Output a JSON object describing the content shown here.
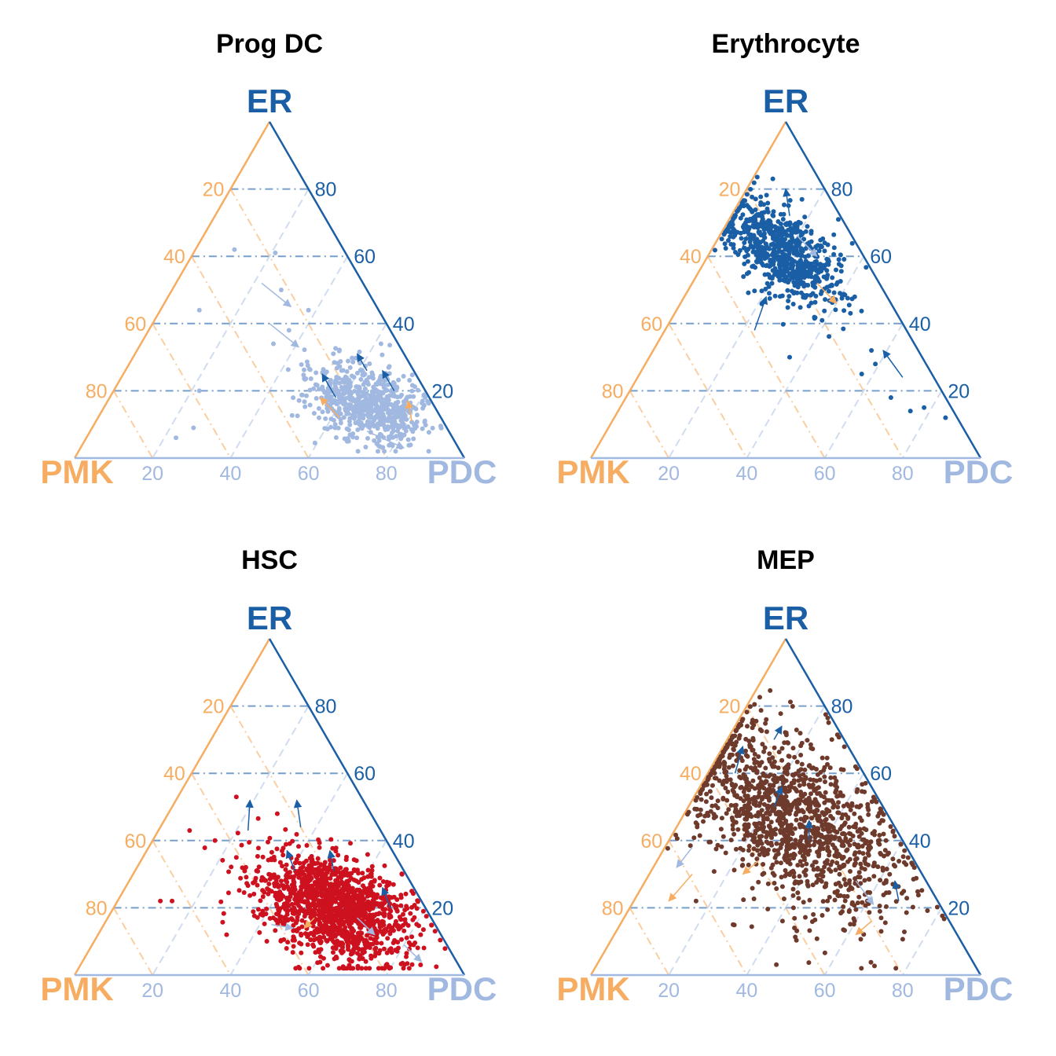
{
  "colors": {
    "ER": "#1a5fa6",
    "PMK": "#f6ad62",
    "PDC": "#a1b9e0",
    "Erythrocyte_points": "#1a5fa6",
    "Prog_DC_points": "#a1b9e0",
    "HSC_points": "#cd111f",
    "MEP_points": "#6e3a2c"
  },
  "chart_data": [
    {
      "type": "scatter",
      "subtype": "ternary",
      "title": "Prog DC",
      "point_color": "#a1b9e0",
      "axes": {
        "top": "ER",
        "left": "PMK",
        "right": "PDC"
      },
      "ticks": [
        20,
        40,
        60,
        80
      ],
      "grid": true,
      "cluster": {
        "ER": 16,
        "PMK": 17,
        "PDC": 67,
        "spread_er": 6,
        "spread_pmk": 7,
        "n": 650
      },
      "outliers": [
        {
          "ER": 62,
          "PMK": 28,
          "PDC": 10
        },
        {
          "ER": 61,
          "PMK": 18,
          "PDC": 21
        },
        {
          "ER": 44,
          "PMK": 46,
          "PDC": 10
        },
        {
          "ER": 20,
          "PMK": 58,
          "PDC": 22
        },
        {
          "ER": 9,
          "PMK": 65,
          "PDC": 26
        },
        {
          "ER": 6,
          "PMK": 71,
          "PDC": 23
        },
        {
          "ER": 50,
          "PMK": 22,
          "PDC": 28
        },
        {
          "ER": 38,
          "PMK": 26,
          "PDC": 36
        },
        {
          "ER": 44,
          "PMK": 18,
          "PDC": 38
        },
        {
          "ER": 34,
          "PMK": 32,
          "PDC": 34
        }
      ],
      "arrows": [
        {
          "from": [
            52,
            26,
            22
          ],
          "to": [
            45,
            22,
            33
          ],
          "color": "#a1b9e0"
        },
        {
          "from": [
            40,
            30,
            30
          ],
          "to": [
            33,
            26,
            41
          ],
          "color": "#a1b9e0"
        },
        {
          "from": [
            8,
            21,
            71
          ],
          "to": [
            3,
            14,
            83
          ],
          "color": "#a1b9e0"
        },
        {
          "from": [
            26,
            12,
            62
          ],
          "to": [
            31,
            12,
            57
          ],
          "color": "#1a5fa6"
        },
        {
          "from": [
            20,
            8,
            72
          ],
          "to": [
            26,
            8,
            66
          ],
          "color": "#1a5fa6"
        },
        {
          "from": [
            11,
            8,
            81
          ],
          "to": [
            17,
            6,
            77
          ],
          "color": "#f6ad62"
        },
        {
          "from": [
            18,
            24,
            58
          ],
          "to": [
            25,
            24,
            51
          ],
          "color": "#1a5fa6"
        },
        {
          "from": [
            12,
            26,
            62
          ],
          "to": [
            18,
            28,
            54
          ],
          "color": "#f6ad62"
        }
      ]
    },
    {
      "type": "scatter",
      "subtype": "ternary",
      "title": "Erythrocyte",
      "point_color": "#1a5fa6",
      "axes": {
        "top": "ER",
        "left": "PMK",
        "right": "PDC"
      },
      "ticks": [
        20,
        40,
        60,
        80
      ],
      "grid": true,
      "cluster": {
        "ER": 61,
        "PMK": 20,
        "PDC": 19,
        "spread_er": 8,
        "spread_pmk": 6,
        "n": 700
      },
      "outliers": [
        {
          "ER": 30,
          "PMK": 34,
          "PDC": 36
        },
        {
          "ER": 25,
          "PMK": 18,
          "PDC": 57
        },
        {
          "ER": 18,
          "PMK": 14,
          "PDC": 68
        },
        {
          "ER": 15,
          "PMK": 7,
          "PDC": 78
        },
        {
          "ER": 12,
          "PMK": 3,
          "PDC": 85
        },
        {
          "ER": 14,
          "PMK": 11,
          "PDC": 75
        },
        {
          "ER": 28,
          "PMK": 13,
          "PDC": 59
        },
        {
          "ER": 32,
          "PMK": 12,
          "PDC": 56
        }
      ],
      "arrows": [
        {
          "from": [
            60,
            32,
            8
          ],
          "to": [
            73,
            21,
            6
          ],
          "color": "#1a5fa6"
        },
        {
          "from": [
            72,
            13,
            15
          ],
          "to": [
            80,
            10,
            10
          ],
          "color": "#1a5fa6"
        },
        {
          "from": [
            66,
            14,
            20
          ],
          "to": [
            60,
            12,
            28
          ],
          "color": "#a1b9e0"
        },
        {
          "from": [
            38,
            39,
            23
          ],
          "to": [
            48,
            31,
            21
          ],
          "color": "#1a5fa6"
        },
        {
          "from": [
            24,
            8,
            68
          ],
          "to": [
            32,
            9,
            59
          ],
          "color": "#1a5fa6"
        },
        {
          "from": [
            52,
            16,
            32
          ],
          "to": [
            46,
            14,
            40
          ],
          "color": "#f6ad62"
        }
      ]
    },
    {
      "type": "scatter",
      "subtype": "ternary",
      "title": "HSC",
      "point_color": "#cd111f",
      "axes": {
        "top": "ER",
        "left": "PMK",
        "right": "PDC"
      },
      "ticks": [
        20,
        40,
        60,
        80
      ],
      "grid": true,
      "cluster": {
        "ER": 20,
        "PMK": 23,
        "PDC": 57,
        "spread_er": 8,
        "spread_pmk": 9,
        "n": 1400
      },
      "outliers": [
        {
          "ER": 53,
          "PMK": 32,
          "PDC": 15
        },
        {
          "ER": 43,
          "PMK": 49,
          "PDC": 8
        },
        {
          "ER": 40,
          "PMK": 44,
          "PDC": 16
        },
        {
          "ER": 22,
          "PMK": 67,
          "PDC": 11
        },
        {
          "ER": 22,
          "PMK": 64,
          "PDC": 14
        },
        {
          "ER": 12,
          "PMK": 55,
          "PDC": 33
        },
        {
          "ER": 35,
          "PMK": 41,
          "PDC": 24
        },
        {
          "ER": 48,
          "PMK": 24,
          "PDC": 28
        },
        {
          "ER": 32,
          "PMK": 28,
          "PDC": 40
        }
      ],
      "arrows": [
        {
          "from": [
            43,
            34,
            23
          ],
          "to": [
            52,
            29,
            19
          ],
          "color": "#1a5fa6"
        },
        {
          "from": [
            44,
            20,
            36
          ],
          "to": [
            52,
            17,
            31
          ],
          "color": "#1a5fa6"
        },
        {
          "from": [
            31,
            18,
            51
          ],
          "to": [
            37,
            16,
            47
          ],
          "color": "#1a5fa6"
        },
        {
          "from": [
            20,
            9,
            71
          ],
          "to": [
            26,
            8,
            66
          ],
          "color": "#1a5fa6"
        },
        {
          "from": [
            9,
            11,
            80
          ],
          "to": [
            4,
            9,
            87
          ],
          "color": "#a1b9e0"
        },
        {
          "from": [
            17,
            19,
            64
          ],
          "to": [
            12,
            17,
            71
          ],
          "color": "#a1b9e0"
        },
        {
          "from": [
            17,
            30,
            53
          ],
          "to": [
            14,
            34,
            52
          ],
          "color": "#f6ad62"
        },
        {
          "from": [
            31,
            28,
            41
          ],
          "to": [
            37,
            27,
            36
          ],
          "color": "#1a5fa6"
        },
        {
          "from": [
            15,
            42,
            43
          ],
          "to": [
            14,
            37,
            49
          ],
          "color": "#a1b9e0"
        }
      ]
    },
    {
      "type": "scatter",
      "subtype": "ternary",
      "title": "MEP",
      "point_color": "#6e3a2c",
      "axes": {
        "top": "ER",
        "left": "PMK",
        "right": "PDC"
      },
      "ticks": [
        20,
        40,
        60,
        80
      ],
      "grid": true,
      "cluster": {
        "ER": 46,
        "PMK": 25,
        "PDC": 29,
        "spread_er": 15,
        "spread_pmk": 12,
        "n": 1300
      },
      "outliers": [
        {
          "ER": 27,
          "PMK": 9,
          "PDC": 64
        },
        {
          "ER": 17,
          "PMK": 17,
          "PDC": 66
        },
        {
          "ER": 13,
          "PMK": 19,
          "PDC": 68
        },
        {
          "ER": 20,
          "PMK": 38,
          "PDC": 42
        },
        {
          "ER": 15,
          "PMK": 56,
          "PDC": 29
        },
        {
          "ER": 22,
          "PMK": 62,
          "PDC": 16
        },
        {
          "ER": 73,
          "PMK": 20,
          "PDC": 7
        },
        {
          "ER": 76,
          "PMK": 17,
          "PDC": 7
        }
      ],
      "arrows": [
        {
          "from": [
            70,
            18,
            12
          ],
          "to": [
            74,
            14,
            12
          ],
          "color": "#1a5fa6"
        },
        {
          "from": [
            60,
            33,
            7
          ],
          "to": [
            68,
            27,
            5
          ],
          "color": "#1a5fa6"
        },
        {
          "from": [
            30,
            59,
            11
          ],
          "to": [
            22,
            69,
            9
          ],
          "color": "#f6ad62"
        },
        {
          "from": [
            38,
            55,
            7
          ],
          "to": [
            32,
            62,
            6
          ],
          "color": "#a1b9e0"
        },
        {
          "from": [
            50,
            28,
            22
          ],
          "to": [
            56,
            23,
            21
          ],
          "color": "#1a5fa6"
        },
        {
          "from": [
            40,
            24,
            36
          ],
          "to": [
            46,
            21,
            33
          ],
          "color": "#1a5fa6"
        },
        {
          "from": [
            28,
            18,
            54
          ],
          "to": [
            21,
            17,
            62
          ],
          "color": "#a1b9e0"
        },
        {
          "from": [
            16,
            20,
            64
          ],
          "to": [
            12,
            26,
            62
          ],
          "color": "#f6ad62"
        },
        {
          "from": [
            22,
            10,
            68
          ],
          "to": [
            28,
            8,
            64
          ],
          "color": "#1a5fa6"
        },
        {
          "from": [
            34,
            40,
            26
          ],
          "to": [
            30,
            46,
            24
          ],
          "color": "#f6ad62"
        }
      ]
    }
  ]
}
